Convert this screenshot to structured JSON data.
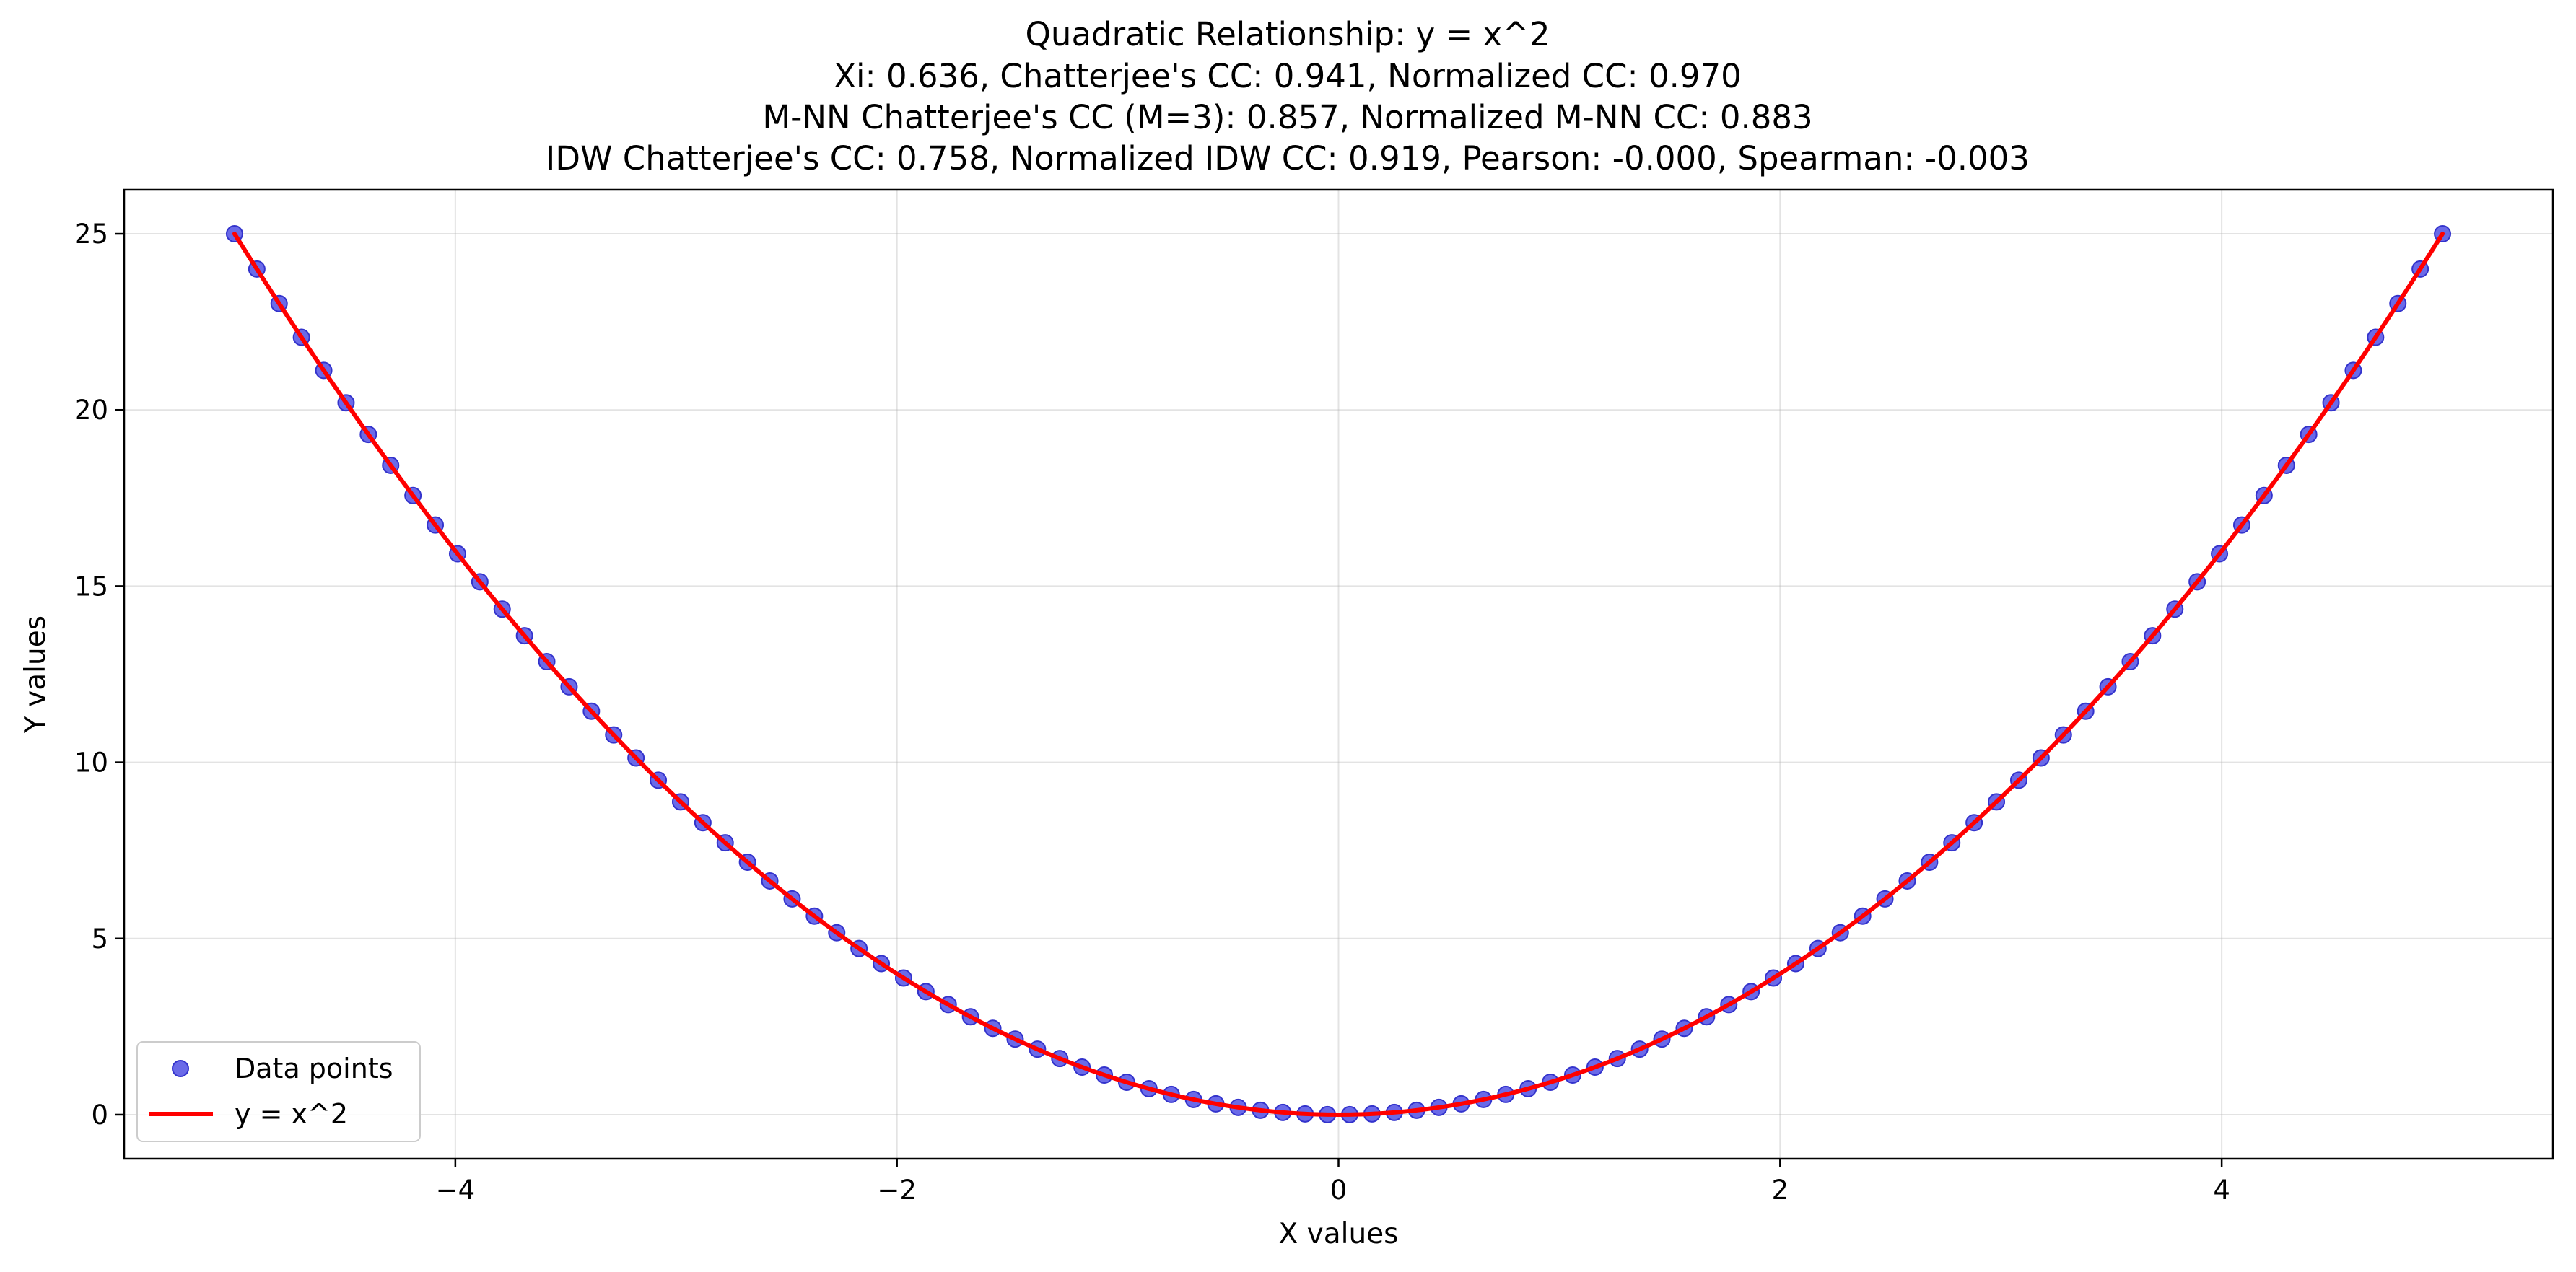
{
  "chart_data": {
    "type": "scatter",
    "title_lines": [
      "Quadratic Relationship: y = x^2",
      "Xi: 0.636, Chatterjee's CC: 0.941, Normalized CC: 0.970",
      "M-NN Chatterjee's CC (M=3): 0.857, Normalized M-NN CC: 0.883",
      "IDW Chatterjee's CC: 0.758, Normalized IDW CC: 0.919, Pearson: -0.000, Spearman: -0.003"
    ],
    "xlabel": "X values",
    "ylabel": "Y values",
    "xlim": [
      -5.5,
      5.5
    ],
    "ylim": [
      -1.25,
      26.25
    ],
    "xticks": [
      -4,
      -2,
      0,
      2,
      4
    ],
    "xtick_labels": [
      "−4",
      "−2",
      "0",
      "2",
      "4"
    ],
    "yticks": [
      0,
      5,
      10,
      15,
      20,
      25
    ],
    "ytick_labels": [
      "0",
      "5",
      "10",
      "15",
      "20",
      "25"
    ],
    "grid": true,
    "legend_position": "lower-left",
    "series": [
      {
        "name": "Data points",
        "kind": "scatter",
        "color": "#5a5ae6",
        "edge_color": "#3333cc",
        "x_range": [
          -5,
          5
        ],
        "n_points": 100
      },
      {
        "name": "y = x^2",
        "kind": "line",
        "color": "#ff0000",
        "x_range": [
          -5,
          5
        ]
      }
    ]
  }
}
